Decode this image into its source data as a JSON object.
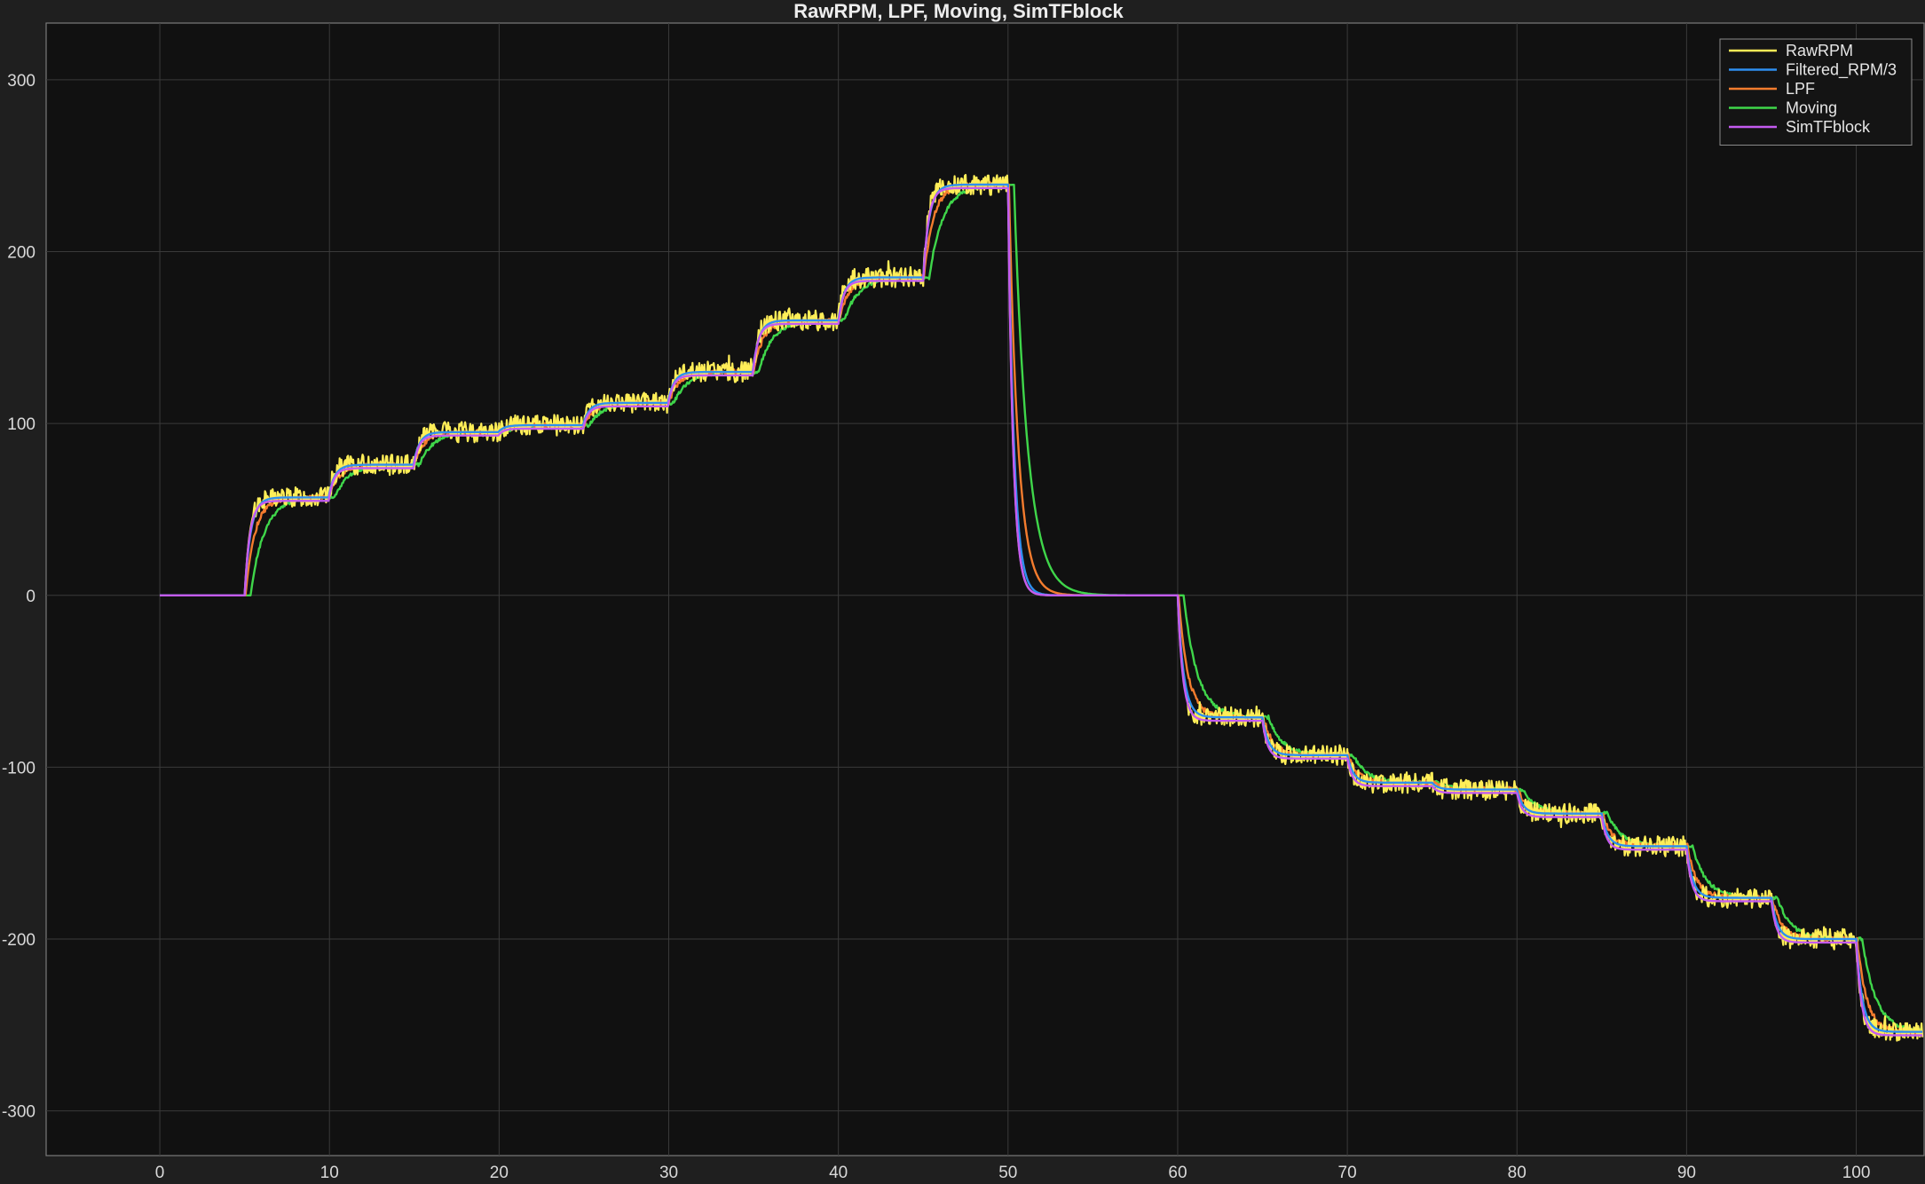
{
  "chart_data": {
    "type": "line",
    "title": "RawRPM, LPF, Moving, SimTFblock",
    "xlabel": "",
    "ylabel": "",
    "xlim": [
      -6.7,
      104
    ],
    "ylim": [
      -326,
      333
    ],
    "xticks": [
      0,
      10,
      20,
      30,
      40,
      50,
      60,
      70,
      80,
      90,
      100
    ],
    "yticks": [
      -300,
      -200,
      -100,
      0,
      100,
      200,
      300
    ],
    "grid": true,
    "legend_position": "top-right",
    "levels": [
      [
        0,
        0
      ],
      [
        5,
        57
      ],
      [
        10,
        76
      ],
      [
        15,
        95
      ],
      [
        20,
        99
      ],
      [
        25,
        112
      ],
      [
        30,
        130
      ],
      [
        35,
        160
      ],
      [
        40,
        185
      ],
      [
        45,
        239
      ],
      [
        50,
        0
      ],
      [
        55,
        0
      ],
      [
        60,
        -71
      ],
      [
        65,
        -93
      ],
      [
        70,
        -109
      ],
      [
        75,
        -113
      ],
      [
        80,
        -127
      ],
      [
        85,
        -146
      ],
      [
        90,
        -176
      ],
      [
        95,
        -200
      ],
      [
        100,
        -254
      ],
      [
        103.9,
        -254
      ]
    ],
    "series": [
      {
        "name": "RawRPM",
        "color": "#ffee58",
        "tau": 0.3,
        "delay": 0,
        "noise": 6,
        "offset": 0
      },
      {
        "name": "Filtered_RPM/3",
        "color": "#2e8ff0",
        "tau": 0.35,
        "delay": 0,
        "noise": 0,
        "offset": 0
      },
      {
        "name": "LPF",
        "color": "#f47c2e",
        "tau": 0.55,
        "delay": 0.05,
        "noise": 1.5,
        "offset": 0
      },
      {
        "name": "Moving",
        "color": "#3fd64a",
        "tau": 0.8,
        "delay": 0.35,
        "noise": 1,
        "offset": 0
      },
      {
        "name": "SimTFblock",
        "color": "#c45bf0",
        "tau": 0.3,
        "delay": 0,
        "noise": 0,
        "offset": -2
      }
    ]
  }
}
